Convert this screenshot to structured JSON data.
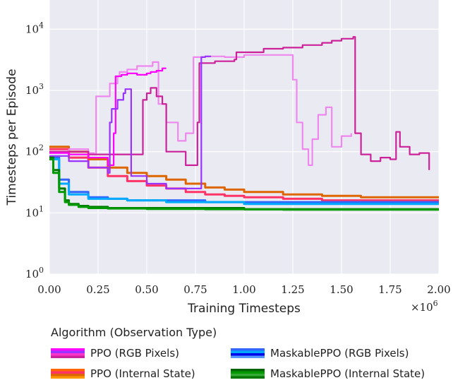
{
  "chart_data": {
    "type": "line",
    "title": "",
    "xlabel": "Training Timesteps",
    "ylabel": "Timesteps per Episode",
    "x_multiplier": "×10",
    "x_multiplier_exp": "6",
    "xlim": [
      0,
      2.0
    ],
    "ylim": [
      1,
      30000
    ],
    "yscale": "log",
    "grid": true,
    "x_ticks": [
      0.0,
      0.25,
      0.5,
      0.75,
      1.0,
      1.25,
      1.5,
      1.75,
      2.0
    ],
    "x_tick_labels": [
      "0.00",
      "0.25",
      "0.50",
      "0.75",
      "1.00",
      "1.25",
      "1.50",
      "1.75",
      "2.00"
    ],
    "y_ticks": [
      1,
      10,
      100,
      1000,
      10000
    ],
    "y_tick_labels": [
      {
        "base": "10",
        "exp": "0"
      },
      {
        "base": "10",
        "exp": "1"
      },
      {
        "base": "10",
        "exp": "2"
      },
      {
        "base": "10",
        "exp": "3"
      },
      {
        "base": "10",
        "exp": "4"
      }
    ],
    "legend": {
      "title": "Algorithm (Observation Type)",
      "placement": "below",
      "entries": [
        {
          "label": "PPO (RGB Pixels)",
          "colors": [
            "#ff00ff",
            "#9933ff",
            "#ff33cc",
            "#cc2299"
          ]
        },
        {
          "label": "MaskablePPO (RGB Pixels)",
          "colors": [
            "#3366ff",
            "#00aaff",
            "#0000ee",
            "#5599ff"
          ]
        },
        {
          "label": "PPO (Internal State)",
          "colors": [
            "#ff6600",
            "#ff3366",
            "#dd6600",
            "#ff9900"
          ]
        },
        {
          "label": "MaskablePPO (Internal State)",
          "colors": [
            "#006600",
            "#009900",
            "#33aa33",
            "#007700"
          ]
        }
      ]
    },
    "series": [
      {
        "name": "PPO (RGB Pixels) run 1",
        "color": "#ee88ee",
        "x": [
          0.0,
          0.1,
          0.2,
          0.23,
          0.24,
          0.3,
          0.31,
          0.35,
          0.36,
          0.4,
          0.45,
          0.53,
          0.56,
          0.6,
          0.66,
          0.7,
          0.74,
          0.76,
          0.8,
          0.83,
          0.9,
          1.0,
          1.1,
          1.15,
          1.2,
          1.23,
          1.25,
          1.27,
          1.3,
          1.33,
          1.35,
          1.38,
          1.42,
          1.45,
          1.5,
          1.55
        ],
        "y": [
          100,
          110,
          95,
          90,
          800,
          800,
          1300,
          1700,
          2000,
          2200,
          2500,
          2900,
          600,
          300,
          150,
          200,
          3500,
          3500,
          3600,
          3600,
          3500,
          3800,
          3800,
          3800,
          3800,
          3800,
          1500,
          300,
          110,
          60,
          160,
          400,
          530,
          120,
          180,
          200
        ]
      },
      {
        "name": "PPO (RGB Pixels) run 2",
        "color": "#cc2299",
        "x": [
          0.0,
          0.2,
          0.48,
          0.5,
          0.52,
          0.55,
          0.58,
          0.6,
          0.7,
          0.76,
          0.77,
          0.85,
          0.95,
          0.96,
          1.1,
          1.2,
          1.3,
          1.4,
          1.45,
          1.5,
          1.56,
          1.57,
          1.6,
          1.65,
          1.7,
          1.75,
          1.78,
          1.8,
          1.85,
          1.9,
          1.95
        ],
        "y": [
          100,
          90,
          700,
          900,
          1100,
          800,
          600,
          100,
          60,
          300,
          2800,
          3000,
          3200,
          4200,
          4800,
          5000,
          5500,
          6000,
          6500,
          7000,
          7500,
          200,
          90,
          70,
          80,
          75,
          210,
          120,
          90,
          95,
          50
        ]
      },
      {
        "name": "PPO (RGB Pixels) run 3",
        "color": "#ff00ff",
        "x": [
          0.0,
          0.1,
          0.2,
          0.3,
          0.33,
          0.34,
          0.36,
          0.37,
          0.4,
          0.45,
          0.5,
          0.52,
          0.55,
          0.58,
          0.6
        ],
        "y": [
          95,
          90,
          80,
          60,
          200,
          1700,
          1700,
          1800,
          1900,
          1800,
          1900,
          2000,
          2100,
          2300,
          2300
        ]
      },
      {
        "name": "PPO (RGB Pixels) run 4",
        "color": "#9933ff",
        "x": [
          0.0,
          0.1,
          0.2,
          0.3,
          0.31,
          0.32,
          0.35,
          0.38,
          0.39,
          0.42,
          0.5,
          0.6,
          0.7,
          0.78,
          0.8,
          0.83
        ],
        "y": [
          85,
          70,
          55,
          45,
          300,
          500,
          700,
          900,
          1050,
          40,
          30,
          25,
          25,
          3500,
          3600,
          3600
        ]
      },
      {
        "name": "PPO (Internal State) run 1",
        "color": "#dd6600",
        "x": [
          0.0,
          0.1,
          0.2,
          0.3,
          0.4,
          0.5,
          0.6,
          0.7,
          0.8,
          0.9,
          1.0,
          1.2,
          1.4,
          1.6,
          1.8,
          2.0
        ],
        "y": [
          120,
          100,
          75,
          55,
          45,
          40,
          35,
          30,
          26,
          24,
          22,
          20,
          19,
          18,
          18,
          18
        ]
      },
      {
        "name": "PPO (Internal State) run 2",
        "color": "#ff3366",
        "x": [
          0.0,
          0.1,
          0.2,
          0.3,
          0.4,
          0.5,
          0.6,
          0.7,
          0.8,
          0.9,
          1.0,
          1.2,
          1.4,
          1.6,
          1.8,
          2.0
        ],
        "y": [
          110,
          80,
          55,
          40,
          33,
          28,
          25,
          22,
          20,
          19,
          18,
          17,
          16,
          16,
          16,
          16
        ]
      },
      {
        "name": "MaskablePPO (RGB Pixels) run 1",
        "color": "#3366ff",
        "x": [
          0.0,
          0.05,
          0.1,
          0.2,
          0.3,
          0.4,
          0.6,
          0.8,
          1.0,
          1.2,
          1.4,
          1.6,
          1.8,
          2.0
        ],
        "y": [
          80,
          35,
          22,
          18,
          17,
          16,
          16,
          15,
          15,
          15,
          15,
          15,
          15,
          15
        ]
      },
      {
        "name": "MaskablePPO (RGB Pixels) run 2",
        "color": "#00aaff",
        "x": [
          0.0,
          0.05,
          0.1,
          0.2,
          0.4,
          0.6,
          0.8,
          1.0,
          1.2,
          1.4,
          1.6,
          1.8,
          2.0
        ],
        "y": [
          75,
          30,
          20,
          17,
          16,
          15,
          15,
          14,
          14,
          14,
          14,
          14,
          14
        ]
      },
      {
        "name": "MaskablePPO (Internal State) run 1",
        "color": "#007700",
        "x": [
          0.0,
          0.02,
          0.05,
          0.08,
          0.1,
          0.15,
          0.2,
          0.3,
          0.5,
          0.8,
          1.0,
          1.2,
          1.5,
          1.8,
          2.0
        ],
        "y": [
          80,
          50,
          25,
          16,
          14,
          13,
          12.5,
          12,
          12,
          12,
          11.5,
          11.5,
          11.5,
          11.5,
          11.5
        ]
      },
      {
        "name": "MaskablePPO (Internal State) run 2",
        "color": "#009900",
        "x": [
          0.0,
          0.02,
          0.05,
          0.08,
          0.1,
          0.15,
          0.2,
          0.3,
          0.5,
          0.8,
          1.0,
          1.2,
          1.5,
          1.8,
          2.0
        ],
        "y": [
          75,
          45,
          22,
          15,
          13.5,
          12.5,
          12,
          11.8,
          11.6,
          11.5,
          11.4,
          11.3,
          11.3,
          11.3,
          11.3
        ]
      }
    ]
  }
}
